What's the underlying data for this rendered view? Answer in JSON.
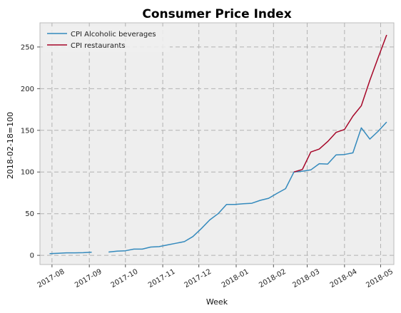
{
  "chart_data": {
    "type": "line",
    "title": "Consumer Price Index",
    "xlabel": "Week",
    "ylabel": "2018-02-18=100",
    "x_ticks": [
      "2017-08",
      "2017-09",
      "2017-10",
      "2017-11",
      "2017-12",
      "2018-01",
      "2018-02",
      "2018-03",
      "2018-04",
      "2018-05"
    ],
    "y_ticks": [
      0,
      50,
      100,
      150,
      200,
      250
    ],
    "xlim": [
      "2017-07-22",
      "2018-05-12"
    ],
    "ylim": [
      -11,
      279
    ],
    "grid": true,
    "legend_position": "top-left",
    "series": [
      {
        "name": "CPI Alcoholic beverages",
        "color": "#348ABD",
        "segments": [
          [
            [
              "2017-07-30",
              2
            ],
            [
              "2017-08-06",
              2.5
            ],
            [
              "2017-08-13",
              3
            ],
            [
              "2017-08-20",
              3
            ],
            [
              "2017-08-27",
              3.2
            ],
            [
              "2017-09-03",
              3.8
            ]
          ],
          [
            [
              "2017-09-17",
              4
            ],
            [
              "2017-09-24",
              5
            ],
            [
              "2017-10-01",
              5.5
            ],
            [
              "2017-10-08",
              7.5
            ],
            [
              "2017-10-15",
              7.5
            ],
            [
              "2017-10-22",
              10
            ],
            [
              "2017-10-29",
              10.5
            ],
            [
              "2017-11-05",
              12.5
            ],
            [
              "2017-11-12",
              14.5
            ],
            [
              "2017-11-19",
              16.5
            ],
            [
              "2017-11-26",
              22.5
            ],
            [
              "2017-12-03",
              32
            ],
            [
              "2017-12-10",
              42.5
            ],
            [
              "2017-12-17",
              50
            ],
            [
              "2017-12-24",
              61
            ],
            [
              "2017-12-31",
              61
            ],
            [
              "2018-01-07",
              62
            ],
            [
              "2018-01-14",
              62.5
            ],
            [
              "2018-01-21",
              66
            ],
            [
              "2018-01-28",
              68.5
            ],
            [
              "2018-02-04",
              74.5
            ],
            [
              "2018-02-11",
              80
            ],
            [
              "2018-02-18",
              100
            ],
            [
              "2018-02-25",
              101
            ],
            [
              "2018-03-04",
              102.5
            ],
            [
              "2018-03-11",
              110
            ],
            [
              "2018-03-18",
              109.5
            ],
            [
              "2018-03-25",
              120.5
            ],
            [
              "2018-04-01",
              121
            ],
            [
              "2018-04-08",
              123
            ],
            [
              "2018-04-15",
              153
            ],
            [
              "2018-04-22",
              139.5
            ],
            [
              "2018-04-29",
              149
            ],
            [
              "2018-05-06",
              160
            ]
          ]
        ]
      },
      {
        "name": "CPI restaurants",
        "color": "#A60628",
        "segments": [
          [
            [
              "2018-02-18",
              100
            ],
            [
              "2018-02-25",
              103
            ],
            [
              "2018-03-04",
              124
            ],
            [
              "2018-03-11",
              127.5
            ],
            [
              "2018-03-18",
              136.5
            ],
            [
              "2018-03-25",
              147.5
            ],
            [
              "2018-04-01",
              151
            ],
            [
              "2018-04-08",
              167
            ],
            [
              "2018-04-15",
              179.5
            ],
            [
              "2018-04-22",
              210
            ],
            [
              "2018-04-29",
              237.5
            ],
            [
              "2018-05-06",
              264.5
            ]
          ]
        ]
      }
    ]
  }
}
